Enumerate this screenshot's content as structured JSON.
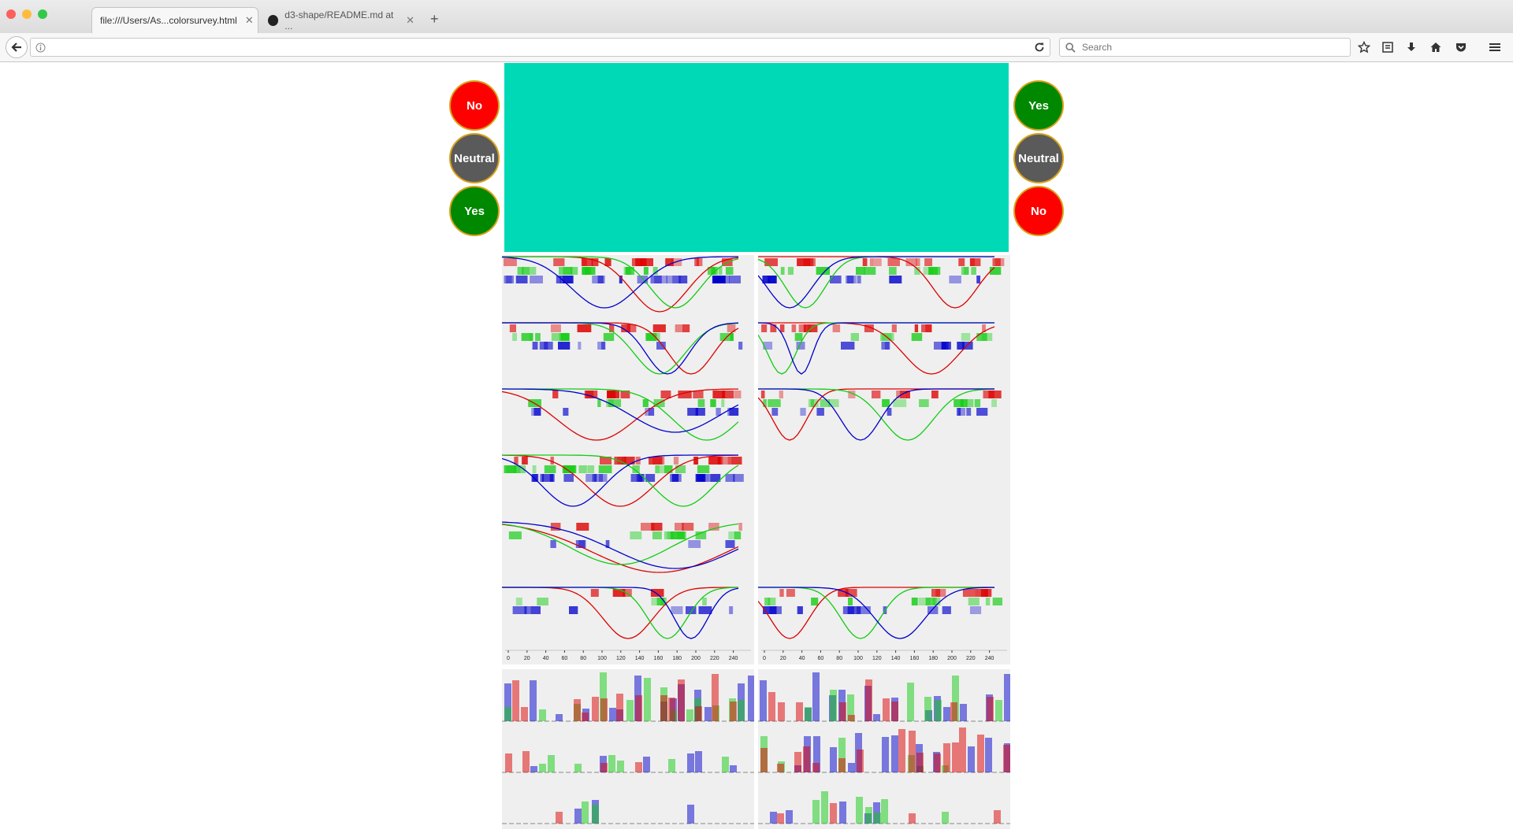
{
  "browser": {
    "tabs": [
      {
        "title": "file:///Users/As...colorsurvey.html",
        "active": true
      },
      {
        "title": "d3-shape/README.md at ...",
        "active": false
      }
    ],
    "url": "",
    "search_placeholder": "Search"
  },
  "swatch_color": "#00d9b6",
  "left_buttons": [
    {
      "label": "No",
      "color": "#ff0000"
    },
    {
      "label": "Neutral",
      "color": "#5a5a5a"
    },
    {
      "label": "Yes",
      "color": "#008800"
    }
  ],
  "right_buttons": [
    {
      "label": "Yes",
      "color": "#008800"
    },
    {
      "label": "Neutral",
      "color": "#5a5a5a"
    },
    {
      "label": "No",
      "color": "#ff0000"
    }
  ],
  "x_axis_ticks": [
    "0",
    "20",
    "40",
    "60",
    "80",
    "100",
    "120",
    "140",
    "160",
    "180",
    "200",
    "220",
    "240"
  ],
  "colors": {
    "red": "#dd0000",
    "green": "#11cc11",
    "blue": "#0000cc"
  }
}
